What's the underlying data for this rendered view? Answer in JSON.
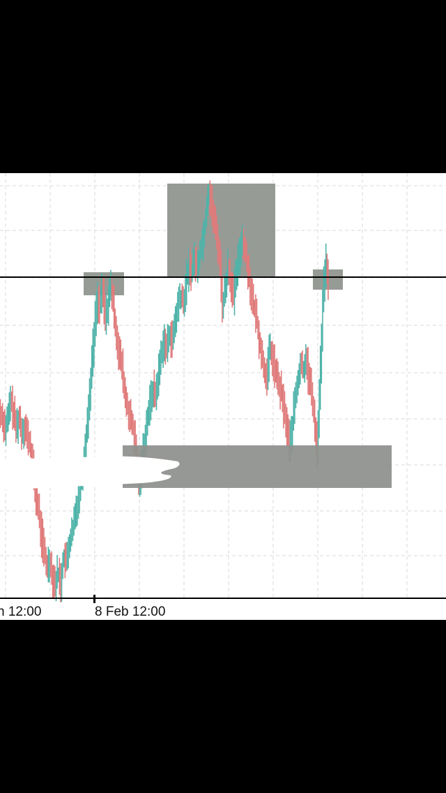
{
  "colors": {
    "background": "#ffffff",
    "letterbox": "#000000",
    "grid": "#d9d9d9",
    "bullish": "#4fb3a9",
    "bearish": "#e07b7b",
    "zone": "#8e928d",
    "line": "#000000"
  },
  "chart_data": {
    "type": "candlestick",
    "grid": true,
    "x_tick_labels": [
      "n 12:00",
      "8 Feb 12:00"
    ],
    "annotations": {
      "horizontal_line": "resistance",
      "zones": [
        "resistance-left",
        "resistance-peak",
        "resistance-right",
        "support"
      ]
    },
    "price_path": [
      [
        0,
        0.44
      ],
      [
        4,
        0.43
      ],
      [
        8,
        0.4
      ],
      [
        12,
        0.42
      ],
      [
        16,
        0.47
      ],
      [
        20,
        0.44
      ],
      [
        24,
        0.4
      ],
      [
        28,
        0.43
      ],
      [
        32,
        0.39
      ],
      [
        36,
        0.41
      ],
      [
        40,
        0.38
      ],
      [
        44,
        0.36
      ],
      [
        48,
        0.3
      ],
      [
        52,
        0.24
      ],
      [
        56,
        0.2
      ],
      [
        60,
        0.14
      ],
      [
        64,
        0.1
      ],
      [
        68,
        0.06
      ],
      [
        72,
        0.08
      ],
      [
        76,
        0.04
      ],
      [
        80,
        0.02
      ],
      [
        84,
        0.05
      ],
      [
        88,
        0.02
      ],
      [
        92,
        0.09
      ],
      [
        96,
        0.07
      ],
      [
        100,
        0.12
      ],
      [
        104,
        0.14
      ],
      [
        108,
        0.18
      ],
      [
        112,
        0.22
      ],
      [
        116,
        0.27
      ],
      [
        120,
        0.31
      ],
      [
        124,
        0.38
      ],
      [
        128,
        0.45
      ],
      [
        132,
        0.55
      ],
      [
        136,
        0.63
      ],
      [
        140,
        0.72
      ],
      [
        144,
        0.7
      ],
      [
        148,
        0.74
      ],
      [
        152,
        0.67
      ],
      [
        156,
        0.71
      ],
      [
        160,
        0.75
      ],
      [
        164,
        0.69
      ],
      [
        168,
        0.63
      ],
      [
        172,
        0.58
      ],
      [
        176,
        0.55
      ],
      [
        180,
        0.48
      ],
      [
        184,
        0.45
      ],
      [
        188,
        0.42
      ],
      [
        192,
        0.4
      ],
      [
        196,
        0.34
      ],
      [
        200,
        0.27
      ],
      [
        204,
        0.31
      ],
      [
        208,
        0.37
      ],
      [
        212,
        0.42
      ],
      [
        216,
        0.46
      ],
      [
        220,
        0.5
      ],
      [
        224,
        0.48
      ],
      [
        228,
        0.53
      ],
      [
        232,
        0.58
      ],
      [
        236,
        0.62
      ],
      [
        240,
        0.59
      ],
      [
        244,
        0.64
      ],
      [
        248,
        0.61
      ],
      [
        252,
        0.66
      ],
      [
        256,
        0.7
      ],
      [
        260,
        0.73
      ],
      [
        264,
        0.7
      ],
      [
        268,
        0.76
      ],
      [
        272,
        0.8
      ],
      [
        276,
        0.78
      ],
      [
        280,
        0.82
      ],
      [
        284,
        0.79
      ],
      [
        288,
        0.84
      ],
      [
        292,
        0.86
      ],
      [
        296,
        0.92
      ],
      [
        300,
        0.99
      ],
      [
        304,
        0.95
      ],
      [
        308,
        0.91
      ],
      [
        312,
        0.87
      ],
      [
        316,
        0.82
      ],
      [
        320,
        0.7
      ],
      [
        324,
        0.74
      ],
      [
        328,
        0.8
      ],
      [
        332,
        0.76
      ],
      [
        336,
        0.72
      ],
      [
        340,
        0.78
      ],
      [
        344,
        0.82
      ],
      [
        348,
        0.87
      ],
      [
        352,
        0.84
      ],
      [
        356,
        0.8
      ],
      [
        360,
        0.75
      ],
      [
        364,
        0.7
      ],
      [
        368,
        0.68
      ],
      [
        372,
        0.63
      ],
      [
        376,
        0.58
      ],
      [
        380,
        0.55
      ],
      [
        384,
        0.52
      ],
      [
        388,
        0.6
      ],
      [
        392,
        0.57
      ],
      [
        396,
        0.54
      ],
      [
        400,
        0.51
      ],
      [
        404,
        0.49
      ],
      [
        408,
        0.45
      ],
      [
        412,
        0.41
      ],
      [
        416,
        0.36
      ],
      [
        420,
        0.4
      ],
      [
        424,
        0.47
      ],
      [
        428,
        0.51
      ],
      [
        432,
        0.56
      ],
      [
        436,
        0.54
      ],
      [
        440,
        0.58
      ],
      [
        444,
        0.52
      ],
      [
        448,
        0.49
      ],
      [
        452,
        0.42
      ],
      [
        456,
        0.35
      ],
      [
        460,
        0.52
      ],
      [
        464,
        0.7
      ],
      [
        468,
        0.82
      ],
      [
        472,
        0.74
      ]
    ]
  }
}
